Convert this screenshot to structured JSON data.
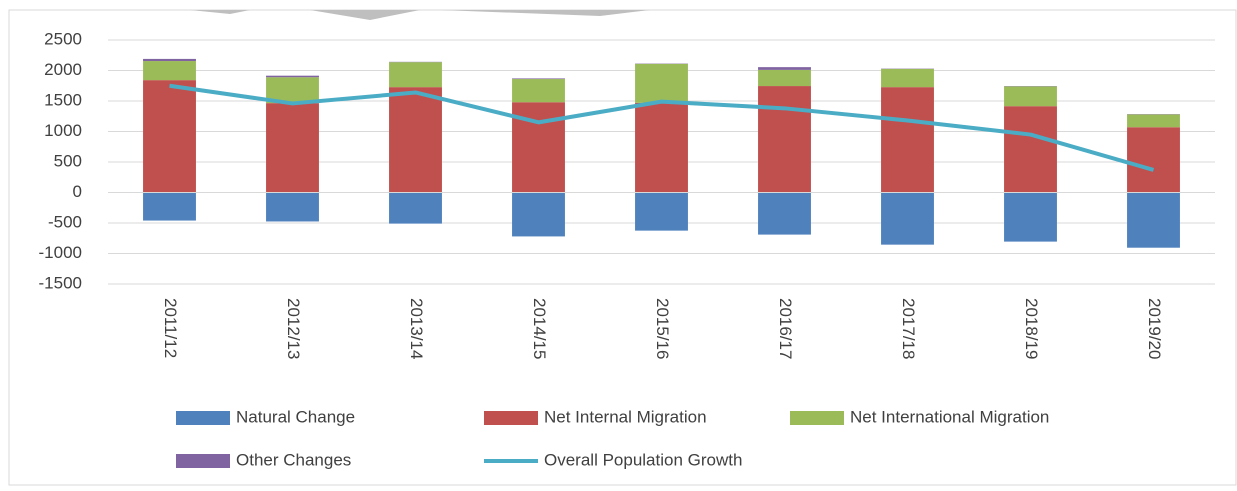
{
  "chart_data": {
    "type": "bar",
    "stacked": true,
    "categories": [
      "2011/12",
      "2012/13",
      "2013/14",
      "2014/15",
      "2015/16",
      "2016/17",
      "2017/18",
      "2018/19",
      "2019/20"
    ],
    "series": [
      {
        "name": "Natural Change",
        "color": "#4f81bd",
        "values": [
          -460,
          -475,
          -510,
          -720,
          -625,
          -690,
          -855,
          -805,
          -905
        ]
      },
      {
        "name": "Net Internal Migration",
        "color": "#c0504d",
        "values": [
          1842,
          1465,
          1727,
          1480,
          1470,
          1745,
          1727,
          1415,
          1070
        ]
      },
      {
        "name": "Net International Migration",
        "color": "#9bbb59",
        "values": [
          313,
          425,
          410,
          380,
          640,
          265,
          300,
          325,
          210
        ]
      },
      {
        "name": "Other Changes",
        "color": "#8064a2",
        "values": [
          35,
          25,
          5,
          10,
          5,
          45,
          5,
          5,
          5
        ]
      },
      {
        "name": "Overall Population Growth",
        "color": "#4bacc6",
        "type": "line",
        "values": [
          1750,
          1460,
          1640,
          1150,
          1490,
          1380,
          1180,
          950,
          370
        ]
      }
    ],
    "ylim": [
      -1500,
      2500
    ],
    "yticks": [
      -1500,
      -1000,
      -500,
      0,
      500,
      1000,
      1500,
      2000,
      2500
    ],
    "grid": true,
    "legend": "bottom"
  }
}
